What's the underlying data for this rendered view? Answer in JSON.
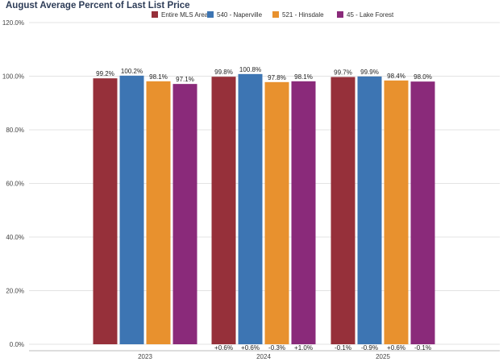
{
  "title": "August Average Percent of Last List Price",
  "chart_data": {
    "type": "bar",
    "title": "August Average Percent of Last List Price",
    "categories": [
      "2023",
      "2024",
      "2025"
    ],
    "ylim": [
      0,
      120
    ],
    "yticks": [
      "0.0%",
      "20.0%",
      "40.0%",
      "60.0%",
      "80.0%",
      "100.0%",
      "120.0%"
    ],
    "ytick_values": [
      0,
      20,
      40,
      60,
      80,
      100,
      120
    ],
    "grid": true,
    "legend_position": "top-right",
    "series": [
      {
        "name": "Entire MLS Area",
        "color": "#96303a",
        "values": [
          99.2,
          99.8,
          99.7
        ],
        "labels": [
          "99.2%",
          "99.8%",
          "99.7%"
        ],
        "changes": [
          "",
          "+0.6%",
          "-0.1%"
        ]
      },
      {
        "name": "540 - Naperville",
        "color": "#3d75b3",
        "values": [
          100.2,
          100.8,
          99.9
        ],
        "labels": [
          "100.2%",
          "100.8%",
          "99.9%"
        ],
        "changes": [
          "",
          "+0.6%",
          "-0.9%"
        ]
      },
      {
        "name": "521 - Hinsdale",
        "color": "#e8912e",
        "values": [
          98.1,
          97.8,
          98.4
        ],
        "labels": [
          "98.1%",
          "97.8%",
          "98.4%"
        ],
        "changes": [
          "",
          "-0.3%",
          "+0.6%"
        ]
      },
      {
        "name": "45 - Lake Forest",
        "color": "#8a2a7a",
        "values": [
          97.1,
          98.1,
          98.0
        ],
        "labels": [
          "97.1%",
          "98.1%",
          "98.0%"
        ],
        "changes": [
          "",
          "+1.0%",
          "-0.1%"
        ]
      }
    ]
  }
}
